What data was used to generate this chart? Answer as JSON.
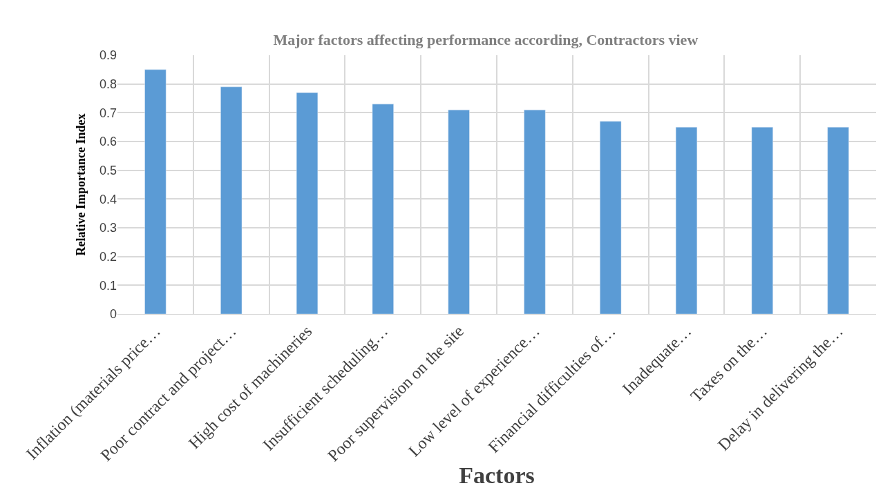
{
  "chart_data": {
    "type": "bar",
    "title": "Major factors affecting performance according, Contractors view",
    "xlabel": "Factors",
    "ylabel": "Relative Importance Index",
    "categories": [
      "Inflation (materials price…",
      "Poor contract and project…",
      "High cost of machineries",
      "Insufficient scheduling…",
      "Poor supervision on the site",
      "Low level of experience…",
      "Financial difficulties of…",
      "Inadequate…",
      "Taxes on the…",
      "Delay in delivering the…"
    ],
    "values": [
      0.85,
      0.79,
      0.77,
      0.73,
      0.71,
      0.71,
      0.67,
      0.65,
      0.65,
      0.65
    ],
    "color": "#5b9bd5",
    "ylim": [
      0,
      0.9
    ],
    "yticks": [
      0,
      0.1,
      0.2,
      0.3,
      0.4,
      0.5,
      0.6,
      0.7,
      0.8,
      0.9
    ],
    "grid": true
  }
}
